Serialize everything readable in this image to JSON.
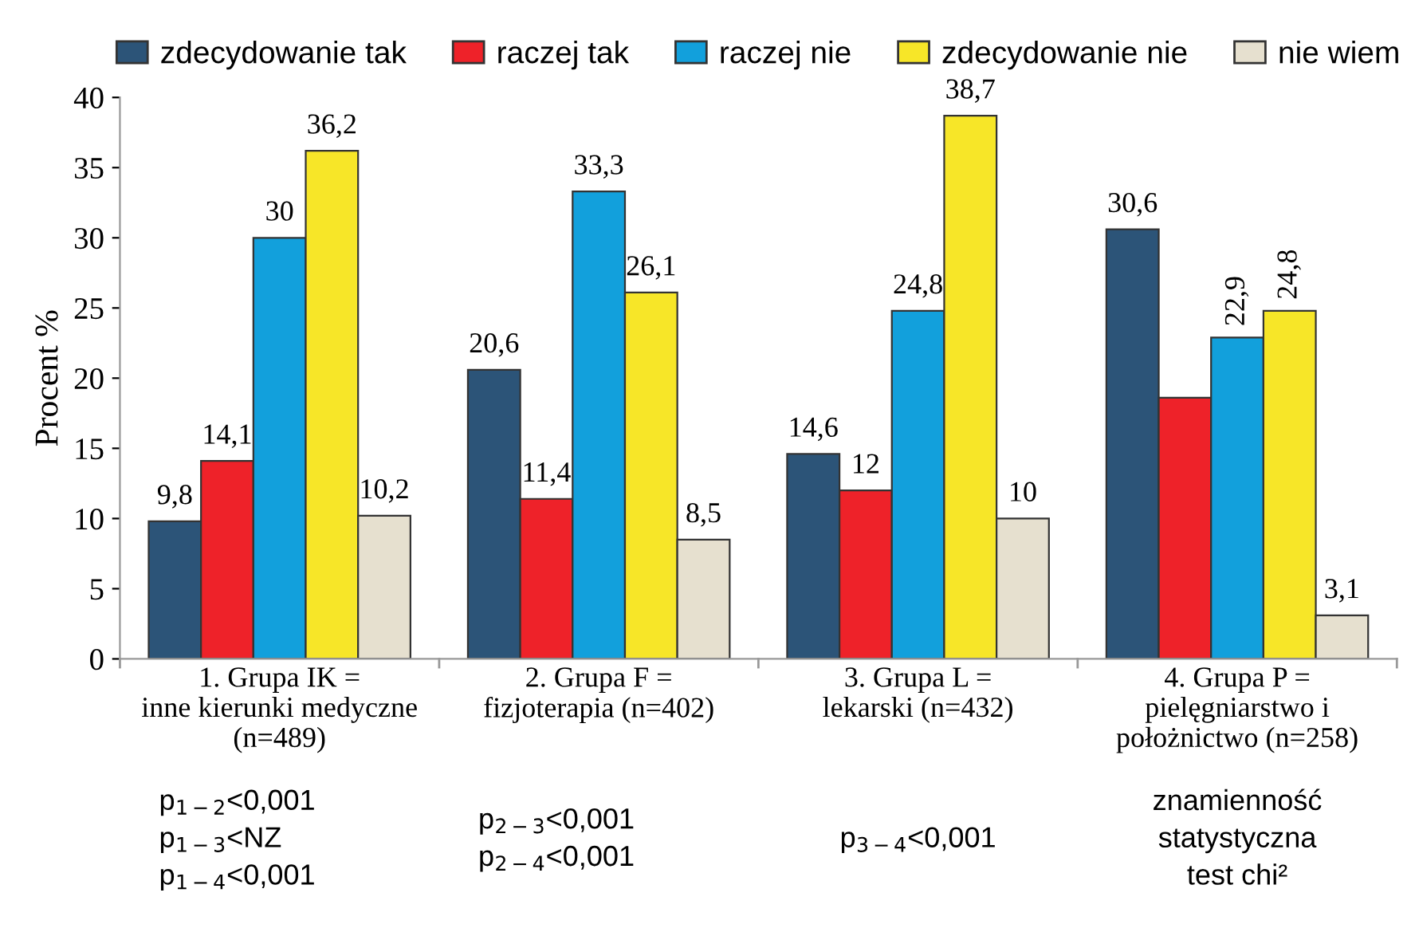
{
  "chart_data": {
    "type": "bar",
    "categories": [
      "1. Grupa IK =\ninne kierunki medyczne\n(n=489)",
      "2. Grupa F =\nfizjoterapia (n=402)",
      "3. Grupa L =\nlekarski (n=432)",
      "4. Grupa P =\npielęgniarstwo i\npołożnictwo (n=258)"
    ],
    "series": [
      {
        "name": "zdecydowanie tak",
        "color": "#2c5478",
        "values": [
          9.8,
          20.6,
          14.6,
          30.6
        ],
        "value_labels": [
          "9,8",
          "20,6",
          "14,6",
          "30,6"
        ]
      },
      {
        "name": "raczej tak",
        "color": "#ee2229",
        "values": [
          14.1,
          11.4,
          12,
          18.6
        ],
        "value_labels": [
          "14,1",
          "11,4",
          "12",
          null
        ]
      },
      {
        "name": "raczej nie",
        "color": "#12a0dc",
        "values": [
          30,
          33.3,
          24.8,
          22.9
        ],
        "value_labels": [
          "30",
          "33,3",
          "24,8",
          "22,9"
        ]
      },
      {
        "name": "zdecydowanie nie",
        "color": "#f7e628",
        "values": [
          36.2,
          26.1,
          38.7,
          24.8
        ],
        "value_labels": [
          "36,2",
          "26,1",
          "38,7",
          "24,8"
        ]
      },
      {
        "name": "nie wiem",
        "color": "#e6e0cf",
        "values": [
          10.2,
          8.5,
          10,
          3.1
        ],
        "value_labels": [
          "10,2",
          "8,5",
          "10",
          "3,1"
        ]
      }
    ],
    "ylabel": "Procent %",
    "ylim": [
      0,
      40
    ],
    "yticks": [
      0,
      5,
      10,
      15,
      20,
      25,
      30,
      35,
      40
    ],
    "legend": "top",
    "annotations": [
      "p$_{1−2}$<0,001\np$_{1−3}$<NZ\np$_{1−4}$<0,001",
      "p$_{2−3}$<0,001\np$_{2−4}$<0,001",
      "p$_{3−4}$<0,001",
      "znamienność\nstatystyczna\ntest chi²"
    ]
  }
}
